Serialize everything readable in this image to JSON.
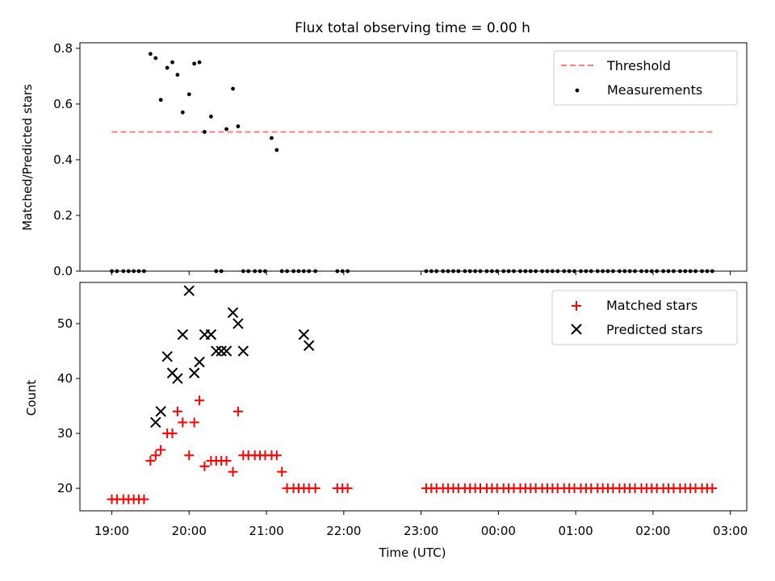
{
  "title": "Flux total observing time = 0.00 h",
  "colors": {
    "threshold": "#ff7f7f",
    "measurement": "#000000",
    "matched": "#ff0000",
    "predicted": "#000000"
  },
  "chart_data": [
    {
      "type": "scatter",
      "panel": "top",
      "xlabel": "",
      "ylabel": "Matched/Predicted stars",
      "ylim": [
        0,
        0.82
      ],
      "yticks": [
        "0.0",
        "0.2",
        "0.4",
        "0.6",
        "0.8"
      ],
      "legend_position": "top-right",
      "grid": false,
      "legend": [
        {
          "label": "Threshold",
          "kind": "dashed-line"
        },
        {
          "label": "Measurements",
          "kind": "dot"
        }
      ],
      "threshold": {
        "name": "Threshold",
        "y": 0.5,
        "x_start": "19:00",
        "x_end": "02:48"
      },
      "series": [
        {
          "name": "Measurements",
          "x": [
            "19:00",
            "19:04",
            "19:09",
            "19:13",
            "19:17",
            "19:21",
            "19:25",
            "19:30",
            "19:34",
            "19:38",
            "19:43",
            "19:47",
            "19:51",
            "19:55",
            "20:00",
            "20:04",
            "20:08",
            "20:12",
            "20:17",
            "20:21",
            "20:25",
            "20:29",
            "20:34",
            "20:38",
            "20:42",
            "20:46",
            "20:51",
            "20:55",
            "20:59",
            "21:04",
            "21:08",
            "21:12",
            "21:16",
            "21:21",
            "21:25",
            "21:29",
            "21:33",
            "21:38",
            "21:55",
            "21:59",
            "22:03",
            "23:04",
            "23:08",
            "23:12",
            "23:17",
            "23:21",
            "23:25",
            "23:29",
            "23:34",
            "23:38",
            "23:42",
            "23:46",
            "23:51",
            "23:55",
            "23:59",
            "00:04",
            "00:08",
            "00:12",
            "00:17",
            "00:21",
            "00:25",
            "00:29",
            "00:34",
            "00:38",
            "00:42",
            "00:46",
            "00:51",
            "00:55",
            "00:59",
            "01:04",
            "01:08",
            "01:12",
            "01:17",
            "01:21",
            "01:25",
            "01:29",
            "01:34",
            "01:38",
            "01:42",
            "01:46",
            "01:51",
            "01:55",
            "01:59",
            "02:03",
            "02:08",
            "02:12",
            "02:16",
            "02:21",
            "02:25",
            "02:29",
            "02:33",
            "02:38",
            "02:42",
            "02:46"
          ],
          "y": [
            0,
            0,
            0,
            0,
            0,
            0,
            0,
            0.78,
            0.765,
            0.615,
            0.73,
            0.75,
            0.705,
            0.57,
            0.635,
            0.745,
            0.75,
            0.5,
            0.555,
            0,
            0,
            0.51,
            0.655,
            0.52,
            0,
            0,
            0,
            0,
            0,
            0.478,
            0.435,
            0,
            0,
            0,
            0,
            0,
            0,
            0,
            0,
            0,
            0,
            0,
            0,
            0,
            0,
            0,
            0,
            0,
            0,
            0,
            0,
            0,
            0,
            0,
            0,
            0,
            0,
            0,
            0,
            0,
            0,
            0,
            0,
            0,
            0,
            0,
            0,
            0,
            0,
            0,
            0,
            0,
            0,
            0,
            0,
            0,
            0,
            0,
            0,
            0,
            0,
            0,
            0,
            0,
            0,
            0,
            0,
            0,
            0,
            0,
            0,
            0,
            0,
            0
          ]
        }
      ]
    },
    {
      "type": "scatter",
      "panel": "bottom",
      "xlabel": "Time (UTC)",
      "ylabel": "Count",
      "ylim": [
        15.9,
        57.5
      ],
      "yticks": [
        "20",
        "30",
        "40",
        "50"
      ],
      "xticks": [
        "19:00",
        "20:00",
        "21:00",
        "22:00",
        "23:00",
        "00:00",
        "01:00",
        "02:00",
        "03:00"
      ],
      "legend_position": "top-right",
      "grid": false,
      "legend": [
        {
          "label": "Matched stars",
          "kind": "plus"
        },
        {
          "label": "Predicted stars",
          "kind": "x"
        }
      ],
      "series": [
        {
          "name": "Matched stars",
          "x": [
            "19:00",
            "19:04",
            "19:09",
            "19:13",
            "19:17",
            "19:21",
            "19:25",
            "19:30",
            "19:34",
            "19:38",
            "19:43",
            "19:47",
            "19:51",
            "19:55",
            "20:00",
            "20:04",
            "20:08",
            "20:12",
            "20:17",
            "20:21",
            "20:25",
            "20:29",
            "20:34",
            "20:38",
            "20:42",
            "20:46",
            "20:51",
            "20:55",
            "20:59",
            "21:04",
            "21:08",
            "21:12",
            "21:16",
            "21:21",
            "21:25",
            "21:29",
            "21:33",
            "21:38",
            "21:55",
            "21:59",
            "22:03",
            "23:04",
            "23:08",
            "23:12",
            "23:17",
            "23:21",
            "23:25",
            "23:29",
            "23:34",
            "23:38",
            "23:42",
            "23:46",
            "23:51",
            "23:55",
            "23:59",
            "00:04",
            "00:08",
            "00:12",
            "00:17",
            "00:21",
            "00:25",
            "00:29",
            "00:34",
            "00:38",
            "00:42",
            "00:46",
            "00:51",
            "00:55",
            "00:59",
            "01:04",
            "01:08",
            "01:12",
            "01:17",
            "01:21",
            "01:25",
            "01:29",
            "01:34",
            "01:38",
            "01:42",
            "01:46",
            "01:51",
            "01:55",
            "01:59",
            "02:03",
            "02:08",
            "02:12",
            "02:16",
            "02:21",
            "02:25",
            "02:29",
            "02:33",
            "02:38",
            "02:42",
            "02:46"
          ],
          "y": [
            18,
            18,
            18,
            18,
            18,
            18,
            18,
            25,
            26,
            27,
            30,
            30,
            34,
            32,
            26,
            32,
            36,
            24,
            25,
            25,
            25,
            25,
            23,
            34,
            26,
            26,
            26,
            26,
            26,
            26,
            26,
            23,
            20,
            20,
            20,
            20,
            20,
            20,
            20,
            20,
            20,
            20,
            20,
            20,
            20,
            20,
            20,
            20,
            20,
            20,
            20,
            20,
            20,
            20,
            20,
            20,
            20,
            20,
            20,
            20,
            20,
            20,
            20,
            20,
            20,
            20,
            20,
            20,
            20,
            20,
            20,
            20,
            20,
            20,
            20,
            20,
            20,
            20,
            20,
            20,
            20,
            20,
            20,
            20,
            20,
            20,
            20,
            20,
            20,
            20,
            20,
            20,
            20,
            20
          ]
        },
        {
          "name": "Predicted stars",
          "x": [
            "19:34",
            "19:38",
            "19:43",
            "19:47",
            "19:51",
            "19:55",
            "20:00",
            "20:04",
            "20:08",
            "20:12",
            "20:17",
            "20:21",
            "20:25",
            "20:29",
            "20:34",
            "20:38",
            "20:42",
            "21:29",
            "21:33"
          ],
          "y": [
            32,
            34,
            44,
            41,
            40,
            48,
            56,
            41,
            43,
            48,
            48,
            45,
            45,
            45,
            52,
            50,
            45,
            48,
            46
          ]
        }
      ]
    }
  ]
}
